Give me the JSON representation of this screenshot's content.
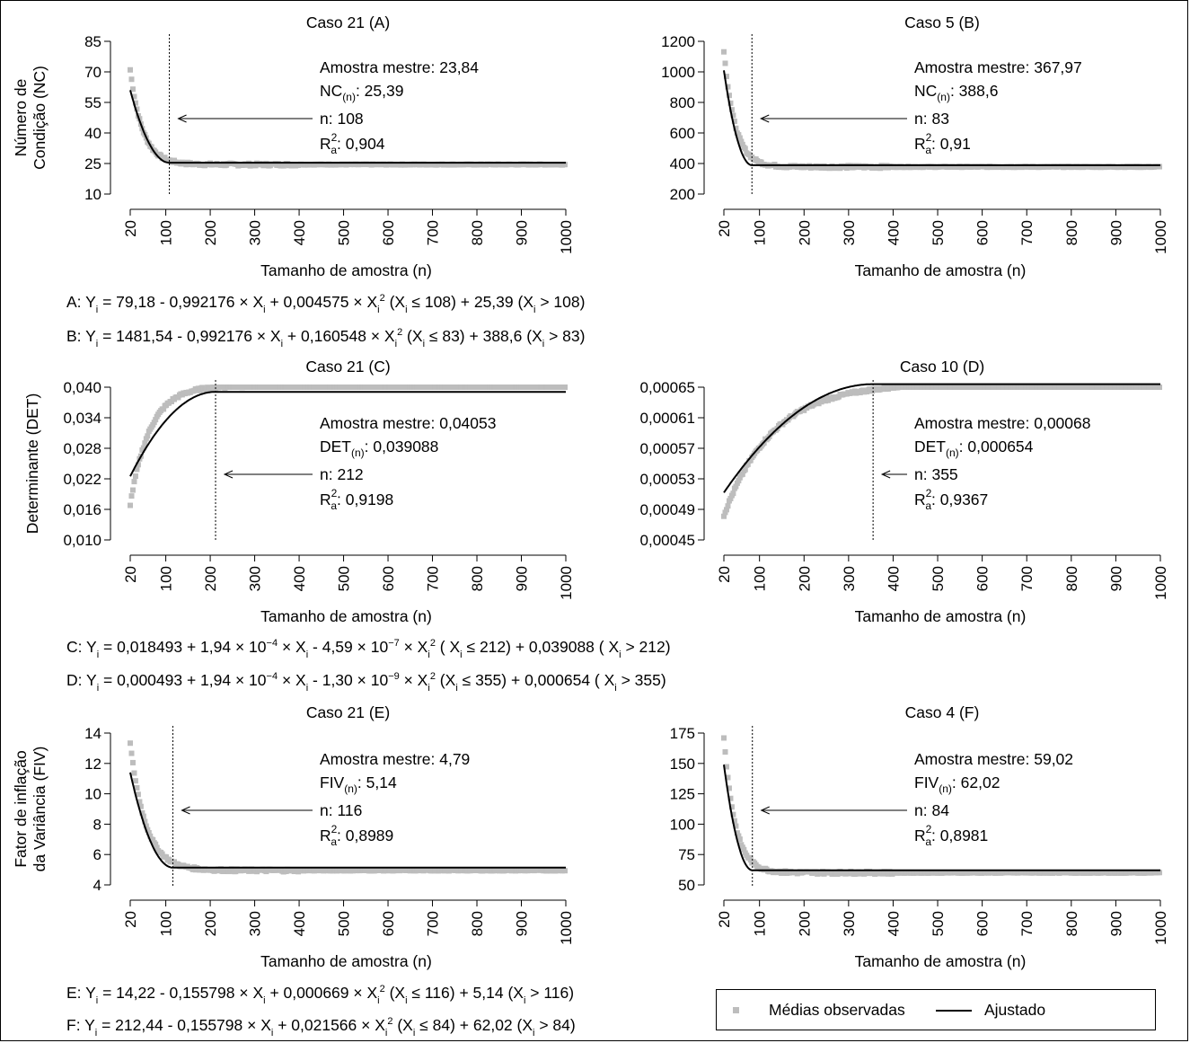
{
  "colors": {
    "observed": "#bdbdbd",
    "fitted": "#000000",
    "axis": "#000000"
  },
  "legend": {
    "observed_label": "Médias observadas",
    "fitted_label": "Ajustado"
  },
  "equations": {
    "A": [
      "A:  Y",
      "i",
      " = 79,18  -  0,992176 × X",
      "i",
      "  +  0,004575 × X",
      "i",
      "2",
      " (X",
      "i",
      " ≤ 108)  +  25,39 (X",
      "i",
      " > 108)"
    ],
    "B": [
      "B:  Y",
      "i",
      " = 1481,54  -  0,992176 × X",
      "i",
      "  +  0,160548 × X",
      "i",
      "2",
      " (X",
      "i",
      " ≤ 83)  +  388,6 (X",
      "i",
      " > 83)"
    ],
    "C": [
      "C:   Y",
      "i",
      " =  0,018493 + 1,94 × 10",
      "−4",
      " ×  X",
      "i",
      " - 4,59 × 10",
      "−7",
      " × X",
      "i",
      "2",
      " ( X",
      "i",
      " ≤ 212) + 0,039088 ( X",
      "i",
      " >  212)"
    ],
    "D": [
      "D:   Y",
      "i",
      " =  0,000493 + 1,94 × 10",
      "−4",
      " ×  X",
      "i",
      " - 1,30 × 10",
      "−9",
      " × X",
      "i",
      "2",
      " (X",
      "i",
      " ≤ 355) + 0,000654 ( X",
      "i",
      " >  355)"
    ],
    "E": [
      "E:  Y",
      "i",
      " = 14,22  -  0,155798 × X",
      "i",
      "  +  0,000669 × X",
      "i",
      "2",
      " (X",
      "i",
      " ≤ 116)  +  5,14 (X",
      "i",
      " > 116)"
    ],
    "F": [
      "F:  Y",
      "i",
      " = 212,44  -  0,155798 × X",
      "i",
      "  +  0,021566 × X",
      "i",
      "2",
      " (X",
      "i",
      " ≤ 84)  +  62,02 (X",
      "i",
      " > 84)"
    ]
  },
  "chart_data": [
    {
      "id": "A",
      "type": "scatter",
      "title": "Caso 21 (A)",
      "xlabel": "Tamanho de amostra (n)",
      "ylabel": [
        "Número de",
        "Condição (NC)"
      ],
      "xticks": [
        20,
        100,
        200,
        300,
        400,
        500,
        600,
        700,
        800,
        900,
        1000
      ],
      "xlim": [
        20,
        1000
      ],
      "yticks": [
        "85",
        "70",
        "55",
        "40",
        "25",
        "10"
      ],
      "ytick_values": [
        85,
        70,
        55,
        40,
        25,
        10
      ],
      "ylim": [
        10,
        85
      ],
      "ann": {
        "master_label": "Amostra mestre: 23,84",
        "stat_prefix": "NC",
        "stat_sub": "(n)",
        "stat_value": ": 25,39",
        "n_label": "n: 108",
        "r2_prefix": "R",
        "r2_value": ": 0,904"
      },
      "cutoff_n": 108,
      "plateau": 25.39,
      "observed_start": 71,
      "observed_end": 24.5,
      "observed_decay": 28,
      "fit_start": 61,
      "observed_series_name": "Médias observadas",
      "fitted_series_name": "Ajustado"
    },
    {
      "id": "B",
      "type": "scatter",
      "title": "Caso 5 (B)",
      "xlabel": "Tamanho de amostra (n)",
      "ylabel": [],
      "xticks": [
        20,
        100,
        200,
        300,
        400,
        500,
        600,
        700,
        800,
        900,
        1000
      ],
      "xlim": [
        20,
        1000
      ],
      "yticks": [
        "1200",
        "1000",
        "800",
        "600",
        "400",
        "200"
      ],
      "ytick_values": [
        1200,
        1000,
        800,
        600,
        400,
        200
      ],
      "ylim": [
        200,
        1200
      ],
      "ann": {
        "master_label": "Amostra mestre: 367,97",
        "stat_prefix": "NC",
        "stat_sub": "(n)",
        "stat_value": ": 388,6",
        "n_label": "n: 83",
        "r2_prefix": "R",
        "r2_value": ": 0,91"
      },
      "cutoff_n": 83,
      "plateau": 388.6,
      "observed_start": 1140,
      "observed_end": 378,
      "observed_decay": 25,
      "fit_start": 1010,
      "observed_series_name": "Médias observadas",
      "fitted_series_name": "Ajustado"
    },
    {
      "id": "C",
      "type": "scatter",
      "title": "Caso 21 (C)",
      "xlabel": "Tamanho de amostra (n)",
      "ylabel": [
        "Determinante (DET)"
      ],
      "xticks": [
        20,
        100,
        200,
        300,
        400,
        500,
        600,
        700,
        800,
        900,
        1000
      ],
      "xlim": [
        20,
        1000
      ],
      "yticks": [
        "0,040",
        "0,034",
        "0,028",
        "0,022",
        "0,016",
        "0,010"
      ],
      "ytick_values": [
        0.04,
        0.034,
        0.028,
        0.022,
        0.016,
        0.01
      ],
      "ylim": [
        0.01,
        0.04
      ],
      "ann": {
        "master_label": "Amostra mestre: 0,04053",
        "stat_prefix": "DET",
        "stat_sub": "(n)",
        "stat_value": ": 0,039088",
        "n_label": "n: 212",
        "r2_prefix": "R",
        "r2_value": ": 0,9198"
      },
      "cutoff_n": 212,
      "plateau": 0.039088,
      "observed_start": 0.017,
      "observed_end": 0.0403,
      "observed_decay": 45,
      "fit_start": 0.0225,
      "observed_series_name": "Médias observadas",
      "fitted_series_name": "Ajustado"
    },
    {
      "id": "D",
      "type": "scatter",
      "title": "Caso 10 (D)",
      "xlabel": "Tamanho de amostra (n)",
      "ylabel": [],
      "xticks": [
        20,
        100,
        200,
        300,
        400,
        500,
        600,
        700,
        800,
        900,
        1000
      ],
      "xlim": [
        20,
        1000
      ],
      "yticks": [
        "0,00065",
        "0,00061",
        "0,00057",
        "0,00053",
        "0,00049",
        "0,00045"
      ],
      "ytick_values": [
        0.00065,
        0.00061,
        0.00057,
        0.00053,
        0.00049,
        0.00045
      ],
      "ylim": [
        0.00045,
        0.00065
      ],
      "ann": {
        "master_label": "Amostra mestre: 0,00068",
        "stat_prefix": "DET",
        "stat_sub": "(n)",
        "stat_value": ": 0,000654",
        "n_label": "n: 355",
        "r2_prefix": "R",
        "r2_value": ": 0,9367"
      },
      "cutoff_n": 355,
      "plateau": 0.000654,
      "observed_start": 0.000482,
      "observed_end": 0.000655,
      "observed_decay": 110,
      "fit_start": 0.000512,
      "observed_series_name": "Médias observadas",
      "fitted_series_name": "Ajustado"
    },
    {
      "id": "E",
      "type": "scatter",
      "title": "Caso 21 (E)",
      "xlabel": "Tamanho de amostra (n)",
      "ylabel": [
        "Fator de inflação",
        "da Variância (FIV)"
      ],
      "xticks": [
        20,
        100,
        200,
        300,
        400,
        500,
        600,
        700,
        800,
        900,
        1000
      ],
      "xlim": [
        20,
        1000
      ],
      "yticks": [
        "14",
        "12",
        "10",
        "8",
        "6",
        "4"
      ],
      "ytick_values": [
        14,
        12,
        10,
        8,
        6,
        4
      ],
      "ylim": [
        4,
        14
      ],
      "ann": {
        "master_label": "Amostra mestre: 4,79",
        "stat_prefix": "FIV",
        "stat_sub": "(n)",
        "stat_value": ": 5,14",
        "n_label": "n: 116",
        "r2_prefix": "R",
        "r2_value": ": 0,8989"
      },
      "cutoff_n": 116,
      "plateau": 5.14,
      "observed_start": 13.3,
      "observed_end": 4.95,
      "observed_decay": 35,
      "fit_start": 11.4,
      "observed_series_name": "Médias observadas",
      "fitted_series_name": "Ajustado"
    },
    {
      "id": "F",
      "type": "scatter",
      "title": "Caso 4 (F)",
      "xlabel": "Tamanho de amostra (n)",
      "ylabel": [],
      "xticks": [
        20,
        100,
        200,
        300,
        400,
        500,
        600,
        700,
        800,
        900,
        1000
      ],
      "xlim": [
        20,
        1000
      ],
      "yticks": [
        "175",
        "150",
        "125",
        "100",
        "75",
        "50"
      ],
      "ytick_values": [
        175,
        150,
        125,
        100,
        75,
        50
      ],
      "ylim": [
        50,
        175
      ],
      "ann": {
        "master_label": "Amostra mestre: 59,02",
        "stat_prefix": "FIV",
        "stat_sub": "(n)",
        "stat_value": ": 62,02",
        "n_label": "n: 84",
        "r2_prefix": "R",
        "r2_value": ": 0,8981"
      },
      "cutoff_n": 84,
      "plateau": 62.02,
      "observed_start": 172,
      "observed_end": 60,
      "observed_decay": 25,
      "fit_start": 149,
      "observed_series_name": "Médias observadas",
      "fitted_series_name": "Ajustado"
    }
  ]
}
